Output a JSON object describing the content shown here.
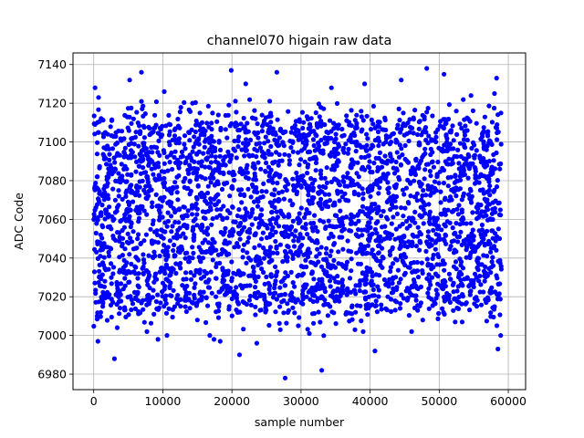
{
  "chart_data": {
    "type": "scatter",
    "title": "channel070 higain raw data",
    "xlabel": "sample number",
    "ylabel": "ADC Code",
    "xlim": [
      -3000,
      62500
    ],
    "ylim": [
      6972,
      7146
    ],
    "xticks": [
      0,
      10000,
      20000,
      30000,
      40000,
      50000,
      60000
    ],
    "xtick_labels": [
      "0",
      "10000",
      "20000",
      "30000",
      "40000",
      "50000",
      "60000"
    ],
    "yticks": [
      6980,
      7000,
      7020,
      7040,
      7060,
      7080,
      7100,
      7120,
      7140
    ],
    "ytick_labels": [
      "6980",
      "7000",
      "7020",
      "7040",
      "7060",
      "7080",
      "7100",
      "7120",
      "7140"
    ],
    "grid": true,
    "marker_color": "#0000ff",
    "series": [
      {
        "x_range": [
          0,
          59000
        ],
        "dense_band": [
          7022,
          7104
        ],
        "outliers": [
          {
            "x": 200,
            "y": 7128
          },
          {
            "x": 500,
            "y": 7010
          },
          {
            "x": 700,
            "y": 7123
          },
          {
            "x": 600,
            "y": 6997
          },
          {
            "x": 1300,
            "y": 7015
          },
          {
            "x": 3000,
            "y": 6988
          },
          {
            "x": 3400,
            "y": 7004
          },
          {
            "x": 5200,
            "y": 7132
          },
          {
            "x": 6900,
            "y": 7136
          },
          {
            "x": 7700,
            "y": 7002
          },
          {
            "x": 9300,
            "y": 6998
          },
          {
            "x": 10200,
            "y": 7126
          },
          {
            "x": 10600,
            "y": 7000
          },
          {
            "x": 14300,
            "y": 7120
          },
          {
            "x": 15000,
            "y": 7008
          },
          {
            "x": 16800,
            "y": 7000
          },
          {
            "x": 17400,
            "y": 6998
          },
          {
            "x": 18300,
            "y": 6997
          },
          {
            "x": 19900,
            "y": 7137
          },
          {
            "x": 21100,
            "y": 6990
          },
          {
            "x": 22000,
            "y": 7130
          },
          {
            "x": 23600,
            "y": 6996
          },
          {
            "x": 26500,
            "y": 7136
          },
          {
            "x": 27000,
            "y": 7003
          },
          {
            "x": 27700,
            "y": 6978
          },
          {
            "x": 29600,
            "y": 7005
          },
          {
            "x": 31200,
            "y": 7001
          },
          {
            "x": 33000,
            "y": 6982
          },
          {
            "x": 34400,
            "y": 7128
          },
          {
            "x": 37800,
            "y": 7003
          },
          {
            "x": 39200,
            "y": 7130
          },
          {
            "x": 40700,
            "y": 6992
          },
          {
            "x": 44500,
            "y": 7132
          },
          {
            "x": 46000,
            "y": 7002
          },
          {
            "x": 48200,
            "y": 7138
          },
          {
            "x": 50700,
            "y": 7135
          },
          {
            "x": 52300,
            "y": 7007
          },
          {
            "x": 54600,
            "y": 7124
          },
          {
            "x": 58300,
            "y": 7133
          },
          {
            "x": 58500,
            "y": 6993
          },
          {
            "x": 58900,
            "y": 7000
          },
          {
            "x": 58000,
            "y": 7125
          }
        ]
      }
    ]
  }
}
